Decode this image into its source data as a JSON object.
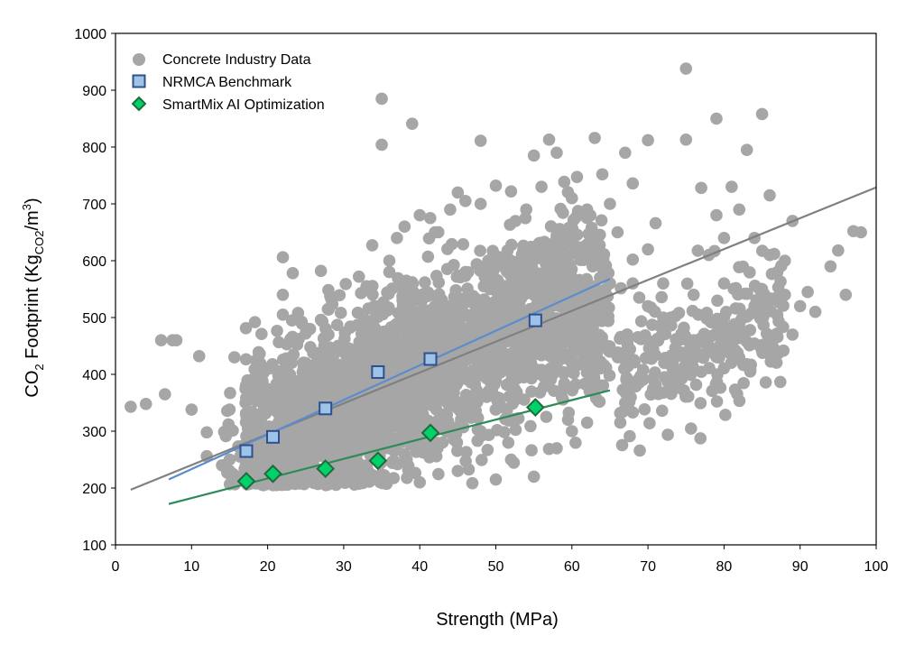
{
  "chart_data": {
    "type": "scatter",
    "xlabel": "Strength (MPa)",
    "ylabel": {
      "main": "CO",
      "sub1": "2",
      "mid": " Footprint (Kg",
      "sub2": "CO2",
      "sep": "/m",
      "sup": "3",
      "end": ")"
    },
    "xlim": [
      0,
      100
    ],
    "ylim": [
      100,
      1000
    ],
    "xticks": [
      "0",
      "10",
      "20",
      "30",
      "40",
      "50",
      "60",
      "70",
      "80",
      "90",
      "100"
    ],
    "yticks": [
      "100",
      "200",
      "300",
      "400",
      "500",
      "600",
      "700",
      "800",
      "900",
      "1000"
    ],
    "grid": false,
    "legend_position": "top-left",
    "series": [
      {
        "name": "Concrete Industry Data",
        "marker": "circle",
        "color": "#a6a6a6",
        "description_density": "dense cloud of several thousand points",
        "points": [
          [
            2,
            343
          ],
          [
            4,
            348
          ],
          [
            6,
            460
          ],
          [
            6.5,
            365
          ],
          [
            7.5,
            460
          ],
          [
            8,
            460
          ],
          [
            10,
            338
          ],
          [
            11,
            432
          ],
          [
            12,
            298
          ],
          [
            12,
            256
          ],
          [
            14,
            240
          ],
          [
            15,
            230
          ],
          [
            22,
            606
          ],
          [
            22,
            540
          ],
          [
            22,
            505
          ],
          [
            23,
            462
          ],
          [
            24,
            508
          ],
          [
            25,
            472
          ],
          [
            25,
            420
          ],
          [
            27,
            582
          ],
          [
            27,
            496
          ],
          [
            28,
            470
          ],
          [
            29,
            412
          ],
          [
            30,
            445
          ],
          [
            32,
            572
          ],
          [
            33,
            555
          ],
          [
            34,
            520
          ],
          [
            35,
            885
          ],
          [
            35,
            804
          ],
          [
            36,
            580
          ],
          [
            36,
            600
          ],
          [
            37,
            640
          ],
          [
            38,
            660
          ],
          [
            39,
            841
          ],
          [
            40,
            680
          ],
          [
            42,
            650
          ],
          [
            44,
            690
          ],
          [
            45,
            720
          ],
          [
            46,
            705
          ],
          [
            48,
            811
          ],
          [
            48,
            700
          ],
          [
            49,
            600
          ],
          [
            50,
            732
          ],
          [
            52,
            722
          ],
          [
            54,
            690
          ],
          [
            55,
            785
          ],
          [
            55,
            620
          ],
          [
            56,
            730
          ],
          [
            57,
            813
          ],
          [
            58,
            790
          ],
          [
            60,
            710
          ],
          [
            60,
            640
          ],
          [
            62,
            690
          ],
          [
            63,
            816
          ],
          [
            64,
            752
          ],
          [
            65,
            700
          ],
          [
            66,
            650
          ],
          [
            67,
            790
          ],
          [
            68,
            736
          ],
          [
            68,
            602
          ],
          [
            70,
            812
          ],
          [
            70,
            620
          ],
          [
            71,
            666
          ],
          [
            72,
            560
          ],
          [
            73,
            500
          ],
          [
            74,
            460
          ],
          [
            75,
            938
          ],
          [
            75,
            813
          ],
          [
            75,
            420
          ],
          [
            76,
            540
          ],
          [
            77,
            728
          ],
          [
            78,
            610
          ],
          [
            79,
            850
          ],
          [
            79,
            680
          ],
          [
            80,
            640
          ],
          [
            80,
            500
          ],
          [
            81,
            730
          ],
          [
            82,
            690
          ],
          [
            82,
            470
          ],
          [
            83,
            795
          ],
          [
            84,
            640
          ],
          [
            85,
            858
          ],
          [
            85,
            550
          ],
          [
            86,
            715
          ],
          [
            86,
            610
          ],
          [
            87,
            580
          ],
          [
            88,
            600
          ],
          [
            89,
            470
          ],
          [
            89,
            670
          ],
          [
            90,
            520
          ],
          [
            91,
            545
          ],
          [
            92,
            510
          ],
          [
            94,
            590
          ],
          [
            95,
            618
          ],
          [
            96,
            540
          ],
          [
            97,
            652
          ],
          [
            98,
            650
          ],
          [
            20,
            305
          ],
          [
            25,
            360
          ],
          [
            30,
            380
          ],
          [
            35,
            420
          ],
          [
            40,
            460
          ],
          [
            45,
            500
          ],
          [
            50,
            520
          ],
          [
            55,
            540
          ],
          [
            60,
            560
          ],
          [
            65,
            560
          ],
          [
            70,
            520
          ],
          [
            40,
            300
          ],
          [
            45,
            340
          ],
          [
            50,
            360
          ],
          [
            55,
            400
          ],
          [
            60,
            420
          ],
          [
            65,
            440
          ],
          [
            50,
            215
          ],
          [
            55,
            220
          ],
          [
            60,
            300
          ],
          [
            33,
            240
          ],
          [
            38,
            260
          ],
          [
            43,
            280
          ],
          [
            48,
            300
          ],
          [
            30,
            300
          ],
          [
            25,
            260
          ],
          [
            18,
            280
          ],
          [
            15,
            250
          ],
          [
            67,
            350
          ],
          [
            68,
            333
          ],
          [
            62,
            315
          ],
          [
            58,
            270
          ],
          [
            52,
            250
          ],
          [
            45,
            230
          ],
          [
            40,
            210
          ],
          [
            35,
            215
          ],
          [
            30,
            220
          ],
          [
            26,
            250
          ],
          [
            28,
            330
          ],
          [
            32,
            390
          ],
          [
            36,
            450
          ],
          [
            42,
            520
          ],
          [
            46,
            580
          ],
          [
            52,
            600
          ],
          [
            58,
            640
          ],
          [
            63,
            600
          ],
          [
            68,
            560
          ],
          [
            72,
            500
          ],
          [
            76,
            460
          ],
          [
            80,
            560
          ],
          [
            84,
            520
          ],
          [
            88,
            540
          ]
        ],
        "trendline": [
          [
            2,
            197
          ],
          [
            100,
            729
          ]
        ]
      },
      {
        "name": "NRMCA Benchmark",
        "marker": "square",
        "color": "#9dc3e6",
        "edge": "#2f4f8f",
        "points": [
          [
            17.2,
            265
          ],
          [
            20.7,
            290
          ],
          [
            27.6,
            340
          ],
          [
            34.5,
            404
          ],
          [
            41.4,
            427
          ],
          [
            55.2,
            495
          ]
        ],
        "trendline": [
          [
            7,
            215
          ],
          [
            65,
            568
          ]
        ],
        "trendline_color": "#5b8ccc"
      },
      {
        "name": "SmartMix AI Optimization",
        "marker": "diamond",
        "color": "#00d16b",
        "edge": "#1f6b3a",
        "points": [
          [
            17.2,
            212
          ],
          [
            20.7,
            225
          ],
          [
            27.6,
            234
          ],
          [
            34.5,
            248
          ],
          [
            41.4,
            297
          ],
          [
            55.2,
            342
          ]
        ],
        "trendline": [
          [
            7,
            172
          ],
          [
            65,
            372
          ]
        ],
        "trendline_color": "#2e8b57"
      }
    ]
  },
  "colors": {
    "axis": "#000000",
    "global_trend": "#808080"
  }
}
